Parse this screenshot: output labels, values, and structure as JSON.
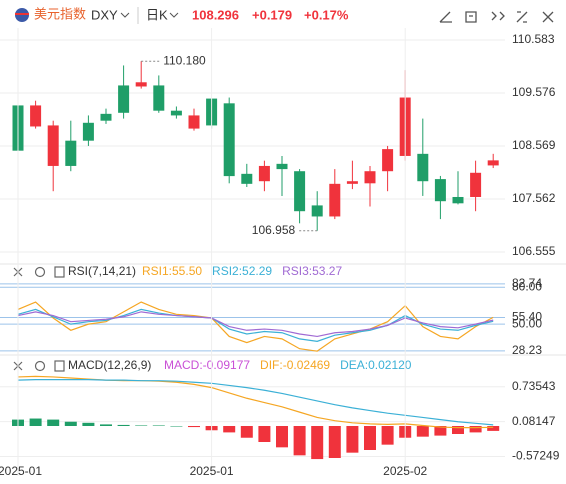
{
  "header": {
    "title": "美元指数",
    "symbol": "DXY",
    "period": "日K",
    "price": "108.296",
    "change": "+0.179",
    "change_pct": "+0.17%"
  },
  "chart_data": [
    {
      "type": "candlestick",
      "up_color": "#f0333c",
      "down_color": "#1f9e68",
      "open": [
        109.34,
        108.94,
        108.19,
        108.67,
        109.01,
        109.18,
        109.72,
        109.7,
        109.72,
        109.24,
        108.9,
        109.47,
        109.38,
        108.04,
        107.9,
        108.23,
        108.09,
        107.44,
        107.23,
        107.85,
        107.86,
        108.09,
        108.38,
        108.42,
        107.94,
        107.6,
        107.6,
        108.2
      ],
      "high": [
        109.63,
        109.43,
        109.05,
        109.05,
        109.15,
        109.28,
        110.1,
        110.18,
        109.91,
        109.32,
        109.28,
        109.47,
        109.49,
        108.23,
        108.29,
        108.38,
        108.13,
        107.71,
        108.13,
        108.29,
        108.19,
        108.57,
        110.01,
        109.09,
        108.0,
        108.09,
        108.29,
        108.42
      ],
      "low": [
        108.29,
        108.9,
        107.71,
        108.09,
        108.57,
        108.99,
        109.09,
        109.66,
        109.2,
        109.09,
        108.86,
        108.9,
        107.86,
        107.79,
        107.71,
        107.62,
        107.1,
        106.958,
        107.18,
        107.75,
        107.42,
        107.71,
        108.29,
        107.62,
        107.18,
        107.46,
        107.33,
        108.15
      ],
      "close": [
        108.48,
        109.34,
        108.96,
        108.19,
        108.67,
        109.05,
        109.2,
        109.78,
        109.24,
        109.15,
        109.15,
        108.96,
        107.997,
        107.85,
        108.19,
        108.13,
        107.33,
        107.23,
        107.85,
        107.9,
        108.09,
        108.51,
        109.49,
        107.9,
        107.52,
        107.48,
        108.06,
        108.296
      ],
      "annotations": [
        {
          "text": "110.180",
          "value": 110.18
        },
        {
          "text": "106.958",
          "value": 106.958
        }
      ],
      "ylim": [
        106.3,
        110.8
      ],
      "yticks": [
        110.583,
        109.576,
        108.569,
        107.562,
        106.555
      ],
      "grid": true
    },
    {
      "type": "line",
      "title": "RSI(7,14,21)",
      "ylim": [
        20,
        90
      ],
      "yticks": [
        82.74,
        {
          "value": 80,
          "label": "80.00"
        },
        {
          "value": 55.4,
          "label": "55.40"
        },
        {
          "value": 50,
          "label": "50.00"
        },
        28.23
      ],
      "series": [
        {
          "name": "RSI1:55.50",
          "color": "#f5a623",
          "values": [
            62,
            68,
            55,
            45,
            50,
            52,
            60,
            68,
            62,
            58,
            57,
            55,
            40,
            35,
            40,
            38,
            30,
            28,
            38,
            42,
            46,
            52,
            65,
            48,
            40,
            38,
            48,
            55.5
          ]
        },
        {
          "name": "RSI2:52.29",
          "color": "#3bb0d6",
          "values": [
            58,
            62,
            56,
            50,
            52,
            53,
            57,
            62,
            59,
            57,
            56,
            55,
            46,
            42,
            44,
            43,
            38,
            36,
            41,
            43,
            45,
            49,
            57,
            50,
            46,
            45,
            49,
            52.29
          ]
        },
        {
          "name": "RSI3:53.27",
          "color": "#a06ad3",
          "values": [
            57,
            60,
            57,
            52,
            53,
            54,
            56,
            60,
            58,
            57,
            56,
            55,
            48,
            45,
            46,
            45,
            42,
            40,
            43,
            44,
            46,
            49,
            55,
            51,
            48,
            47,
            50,
            53.27
          ]
        }
      ]
    },
    {
      "type": "macd",
      "title": "MACD(12,26,9)",
      "ylim": [
        -0.9,
        1.2
      ],
      "yticks": [
        0.73543,
        0.08147,
        -0.57249
      ],
      "xticks": [
        {
          "value": 0,
          "label": "2025-01"
        },
        {
          "value": 11,
          "label": "2025-01"
        },
        {
          "value": 22,
          "label": "2025-02"
        }
      ],
      "bar_up_color": "#1f9e68",
      "bar_down_color": "#f0333c",
      "histogram": {
        "name": "MACD:-0.09177",
        "color": "#c94fd6",
        "values": [
          0.12,
          0.14,
          0.12,
          0.08,
          0.06,
          0.03,
          0.02,
          0.01,
          0.01,
          0.0,
          -0.02,
          -0.08,
          -0.12,
          -0.22,
          -0.3,
          -0.4,
          -0.55,
          -0.62,
          -0.6,
          -0.5,
          -0.45,
          -0.35,
          -0.22,
          -0.2,
          -0.18,
          -0.15,
          -0.12,
          -0.09177
        ]
      },
      "series": [
        {
          "name": "DIF:-0.02469",
          "color": "#f5a623",
          "values": [
            0.92,
            0.93,
            0.92,
            0.9,
            0.88,
            0.86,
            0.85,
            0.85,
            0.84,
            0.82,
            0.78,
            0.72,
            0.62,
            0.52,
            0.44,
            0.36,
            0.26,
            0.16,
            0.1,
            0.06,
            0.04,
            0.03,
            0.04,
            0.01,
            -0.02,
            -0.03,
            -0.03,
            -0.02469
          ]
        },
        {
          "name": "DEA:0.02120",
          "color": "#3bb0d6",
          "values": [
            0.86,
            0.87,
            0.87,
            0.87,
            0.87,
            0.86,
            0.86,
            0.85,
            0.85,
            0.84,
            0.82,
            0.8,
            0.76,
            0.72,
            0.67,
            0.61,
            0.54,
            0.47,
            0.4,
            0.34,
            0.29,
            0.24,
            0.2,
            0.16,
            0.12,
            0.08,
            0.05,
            0.0212
          ]
        }
      ]
    }
  ]
}
